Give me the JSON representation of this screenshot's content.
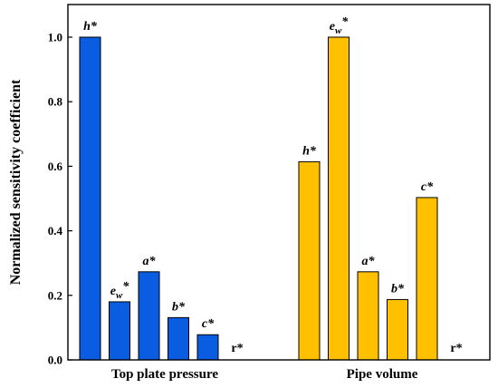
{
  "chart_data": {
    "type": "bar",
    "ylabel": "Normalized sensitivity coefficient",
    "xlabel": "",
    "ylim": [
      0,
      1.1
    ],
    "yticks": [
      0.0,
      0.2,
      0.4,
      0.6,
      0.8,
      1.0
    ],
    "ytick_labels": [
      "0.0",
      "0.2",
      "0.4",
      "0.6",
      "0.8",
      "1.0"
    ],
    "grid": false,
    "legend": null,
    "groups": [
      {
        "label": "Top plate pressure",
        "color": "#0A5CE0",
        "bars": [
          {
            "label": "h*",
            "value": 1.0
          },
          {
            "label": "e_w*",
            "value": 0.18
          },
          {
            "label": "a*",
            "value": 0.273
          },
          {
            "label": "b*",
            "value": 0.131
          },
          {
            "label": "c*",
            "value": 0.078
          },
          {
            "label": "r*",
            "value": 0.0
          }
        ]
      },
      {
        "label": "Pipe volume",
        "color": "#FFC000",
        "bars": [
          {
            "label": "h*",
            "value": 0.614
          },
          {
            "label": "e_w*",
            "value": 1.0
          },
          {
            "label": "a*",
            "value": 0.273
          },
          {
            "label": "b*",
            "value": 0.187
          },
          {
            "label": "c*",
            "value": 0.503
          },
          {
            "label": "r*",
            "value": 0.0
          }
        ]
      }
    ]
  }
}
